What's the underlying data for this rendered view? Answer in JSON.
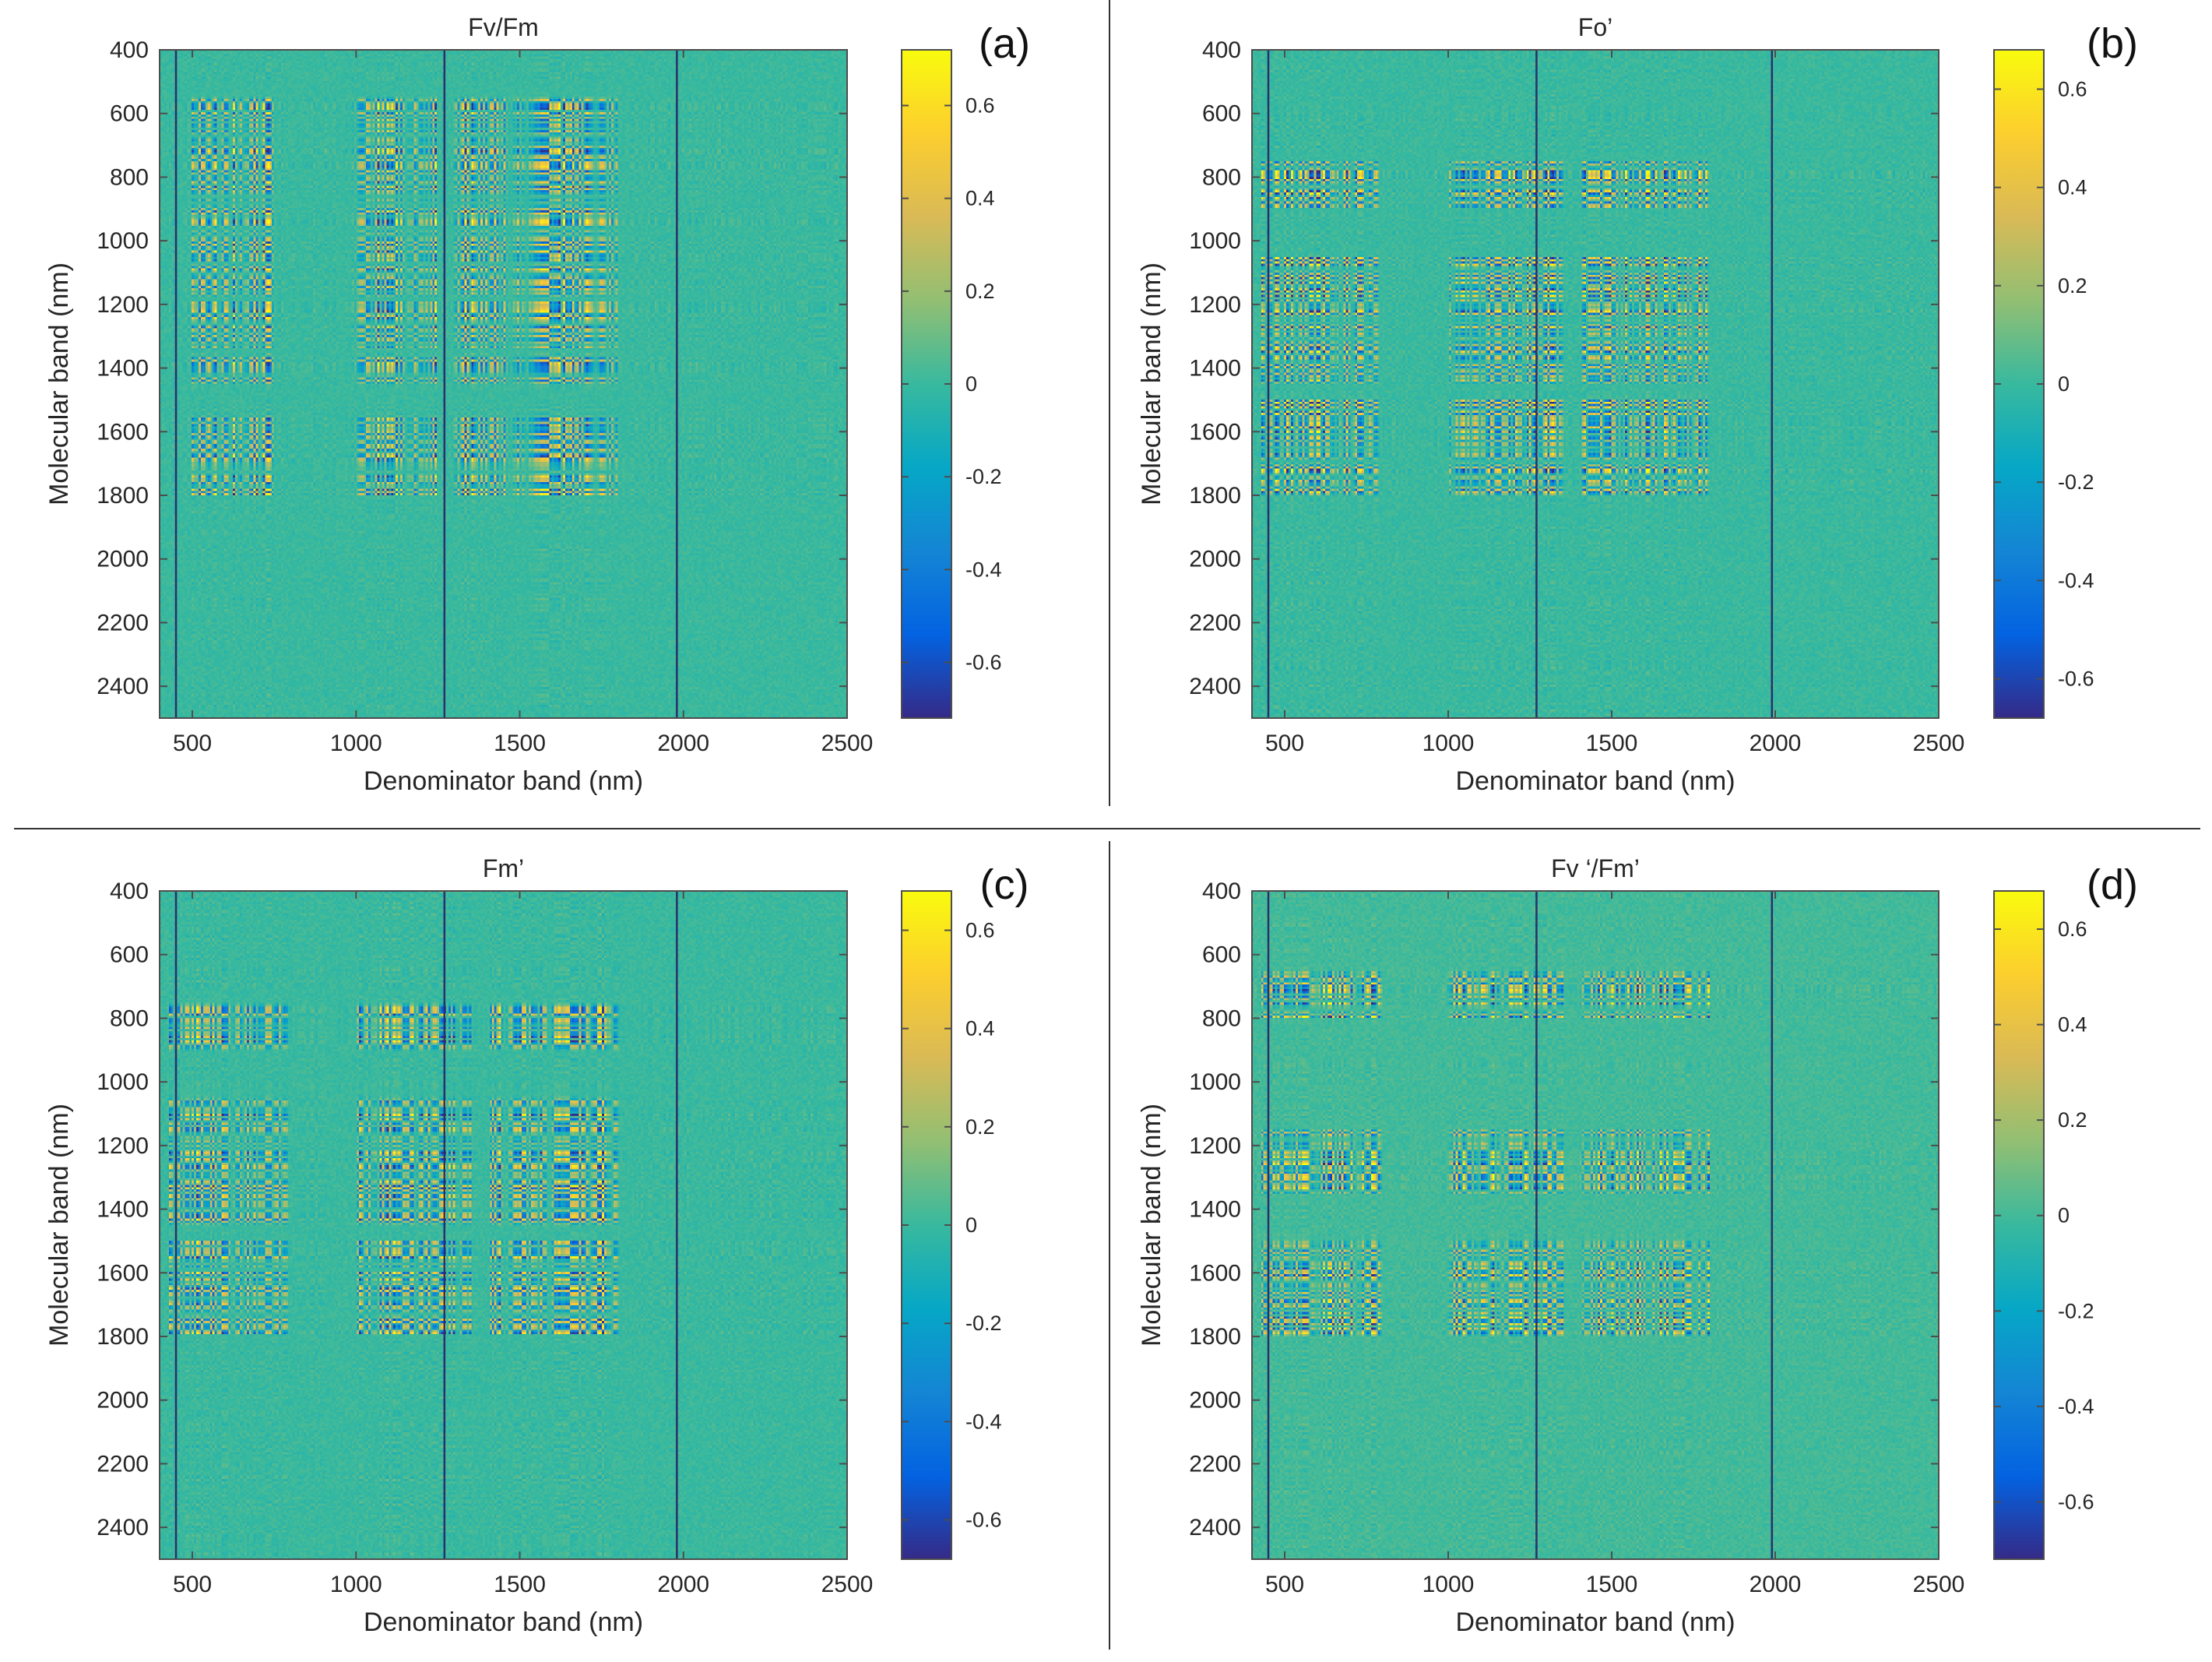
{
  "figure": {
    "colormap": {
      "name": "parula",
      "stops": [
        "#352a87",
        "#0363e1",
        "#1485d4",
        "#06a7c6",
        "#38b99e",
        "#92bf73",
        "#d9ba56",
        "#fcce2e",
        "#f9fb0e"
      ]
    },
    "axis_color": "#4d4d4d",
    "divider_color": "#333333"
  },
  "chart_data": [
    {
      "id": "a",
      "type": "heatmap",
      "panel_label": "(a)",
      "title": "Fv/Fm",
      "xlabel": "Denominator band (nm)",
      "ylabel": "Molecular band (nm)",
      "xlim": [
        400,
        2500
      ],
      "ylim": [
        400,
        2500
      ],
      "xticks": [
        500,
        1000,
        1500,
        2000,
        2500
      ],
      "yticks": [
        400,
        600,
        800,
        1000,
        1200,
        1400,
        1600,
        1800,
        2000,
        2200,
        2400
      ],
      "clim": [
        -0.72,
        0.72
      ],
      "colorbar_ticks": [
        0.6,
        0.4,
        0.2,
        0,
        -0.2,
        -0.4,
        -0.6
      ],
      "colorbar_tick_labels": [
        "0.6",
        "0.4",
        "0.2",
        "0",
        "-0.2",
        "-0.4",
        "-0.6"
      ],
      "dark_lines_x": [
        450,
        1270,
        1980
      ],
      "hot_columns": [
        [
          500,
          760
        ],
        [
          1000,
          1250
        ],
        [
          1300,
          1800
        ]
      ],
      "hot_rows": [
        [
          550,
          1000
        ],
        [
          1000,
          1450
        ],
        [
          1550,
          1800
        ]
      ]
    },
    {
      "id": "b",
      "type": "heatmap",
      "panel_label": "(b)",
      "title": "Fo’",
      "xlabel": "Denominator band (nm)",
      "ylabel": "Molecular band (nm)",
      "xlim": [
        400,
        2500
      ],
      "ylim": [
        400,
        2500
      ],
      "xticks": [
        500,
        1000,
        1500,
        2000,
        2500
      ],
      "yticks": [
        400,
        600,
        800,
        1000,
        1200,
        1400,
        1600,
        1800,
        2000,
        2200,
        2400
      ],
      "clim": [
        -0.68,
        0.68
      ],
      "colorbar_ticks": [
        0.6,
        0.4,
        0.2,
        0,
        -0.2,
        -0.4,
        -0.6
      ],
      "colorbar_tick_labels": [
        "0.6",
        "0.4",
        "0.2",
        "0",
        "-0.2",
        "-0.4",
        "-0.6"
      ],
      "dark_lines_x": [
        450,
        1270,
        1990
      ],
      "hot_columns": [
        [
          430,
          800
        ],
        [
          1000,
          1350
        ],
        [
          1400,
          1800
        ]
      ],
      "hot_rows": [
        [
          750,
          900
        ],
        [
          1050,
          1450
        ],
        [
          1500,
          1800
        ]
      ]
    },
    {
      "id": "c",
      "type": "heatmap",
      "panel_label": "(c)",
      "title": "Fm’",
      "xlabel": "Denominator band (nm)",
      "ylabel": "Molecular band (nm)",
      "xlim": [
        400,
        2500
      ],
      "ylim": [
        400,
        2500
      ],
      "xticks": [
        500,
        1000,
        1500,
        2000,
        2500
      ],
      "yticks": [
        400,
        600,
        800,
        1000,
        1200,
        1400,
        1600,
        1800,
        2000,
        2200,
        2400
      ],
      "clim": [
        -0.68,
        0.68
      ],
      "colorbar_ticks": [
        0.6,
        0.4,
        0.2,
        0,
        -0.2,
        -0.4,
        -0.6
      ],
      "colorbar_tick_labels": [
        "0.6",
        "0.4",
        "0.2",
        "0",
        "-0.2",
        "-0.4",
        "-0.6"
      ],
      "dark_lines_x": [
        450,
        1270,
        1980
      ],
      "hot_columns": [
        [
          430,
          800
        ],
        [
          1000,
          1350
        ],
        [
          1400,
          1800
        ]
      ],
      "hot_rows": [
        [
          750,
          900
        ],
        [
          1050,
          1450
        ],
        [
          1500,
          1800
        ]
      ]
    },
    {
      "id": "d",
      "type": "heatmap",
      "panel_label": "(d)",
      "title": "Fv ‘/Fm’",
      "xlabel": "Denominator band (nm)",
      "ylabel": "Molecular band (nm)",
      "xlim": [
        400,
        2500
      ],
      "ylim": [
        400,
        2500
      ],
      "xticks": [
        500,
        1000,
        1500,
        2000,
        2500
      ],
      "yticks": [
        400,
        600,
        800,
        1000,
        1200,
        1400,
        1600,
        1800,
        2000,
        2200,
        2400
      ],
      "clim": [
        -0.72,
        0.68
      ],
      "colorbar_ticks": [
        0.6,
        0.4,
        0.2,
        0,
        -0.2,
        -0.4,
        -0.6
      ],
      "colorbar_tick_labels": [
        "0.6",
        "0.4",
        "0.2",
        "0",
        "-0.2",
        "-0.4",
        "-0.6"
      ],
      "dark_lines_x": [
        450,
        1270,
        1990
      ],
      "hot_columns": [
        [
          430,
          800
        ],
        [
          1000,
          1350
        ],
        [
          1400,
          1800
        ]
      ],
      "hot_rows": [
        [
          650,
          800
        ],
        [
          1150,
          1350
        ],
        [
          1500,
          1800
        ]
      ]
    }
  ]
}
